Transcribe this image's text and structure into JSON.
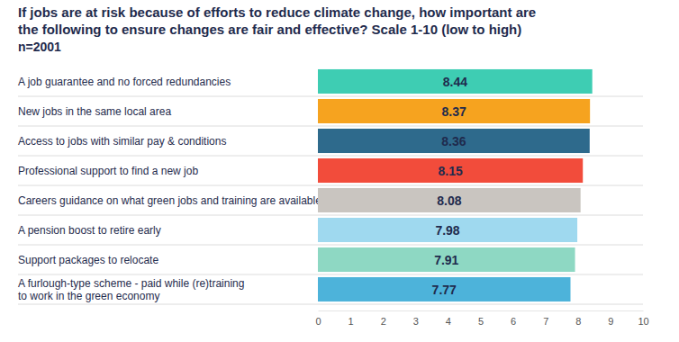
{
  "chart_data": {
    "type": "bar",
    "orientation": "horizontal",
    "title": "If jobs are at risk because of efforts to reduce climate change, how important are\nthe following to ensure changes are fair and effective? Scale 1-10 (low to high)",
    "subtitle": "n=2001",
    "categories": [
      "A job guarantee and no forced redundancies",
      "New jobs in the same local area",
      "Access to jobs with similar pay & conditions",
      "Professional support to find a new job",
      "Careers guidance on what green jobs and training are available",
      "A pension boost to retire early",
      "Support packages to relocate",
      "A furlough-type scheme - paid while (re)training\nto work in the green economy"
    ],
    "values": [
      8.44,
      8.37,
      8.36,
      8.15,
      8.08,
      7.98,
      7.91,
      7.77
    ],
    "colors": [
      "#3ecdb3",
      "#f6a31f",
      "#2e6a8c",
      "#f24c3b",
      "#c9c5c0",
      "#9fd9ef",
      "#8ed8c3",
      "#4db3da"
    ],
    "xlim": [
      0,
      10
    ],
    "xticks": [
      0,
      1,
      2,
      3,
      4,
      5,
      6,
      7,
      8,
      9,
      10
    ],
    "grid": false,
    "data_labels": true
  }
}
